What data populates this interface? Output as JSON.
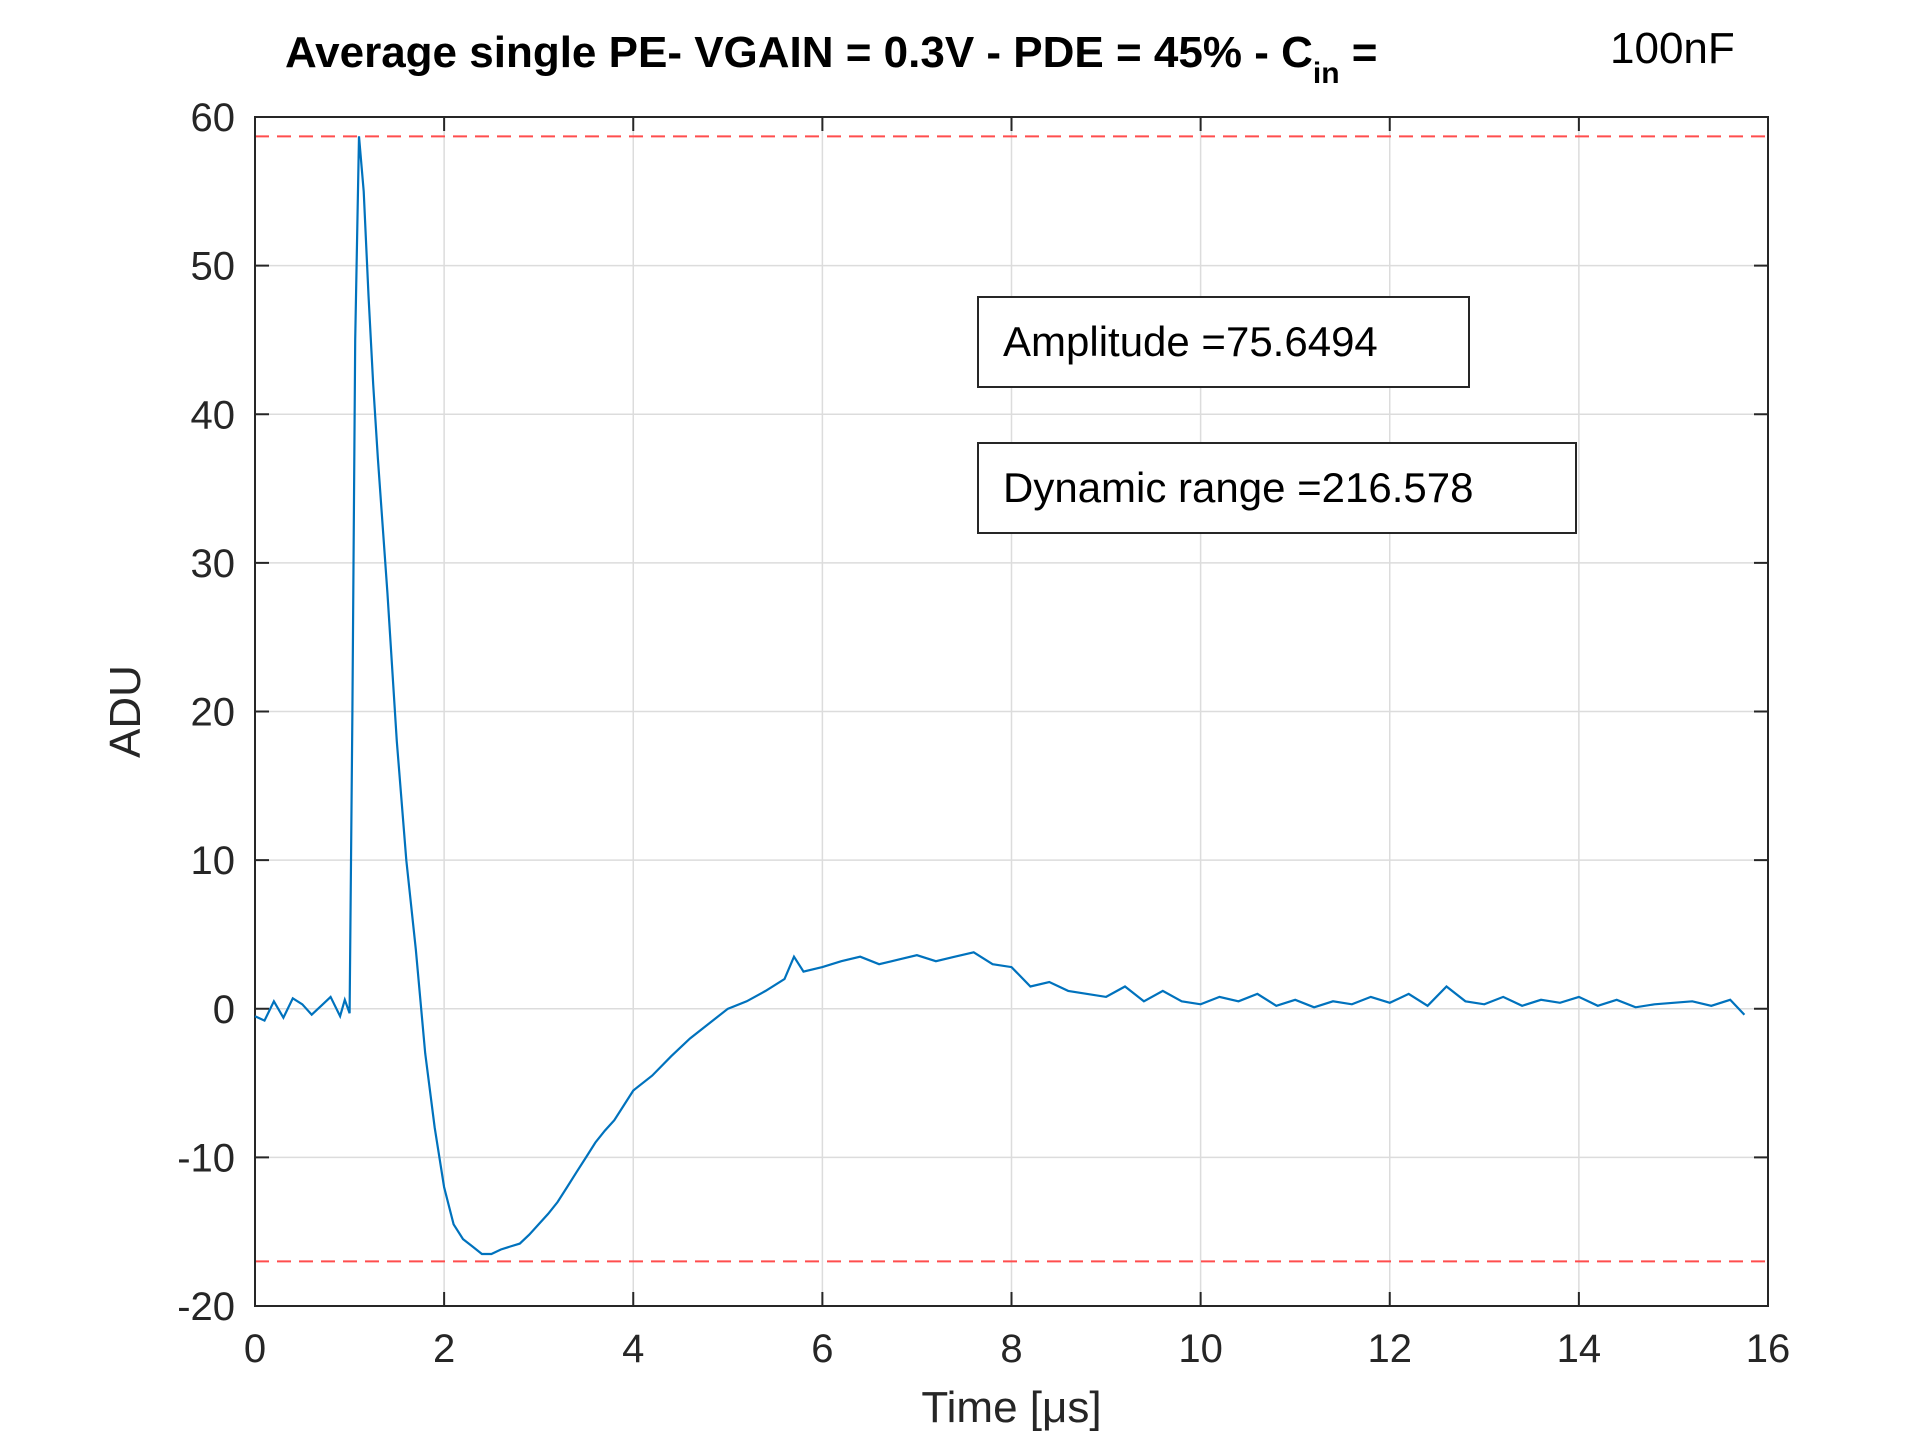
{
  "chart_data": {
    "type": "line",
    "title": {
      "main": "Average single PE- VGAIN = 0.3V - PDE = 45% - C",
      "subscript": "in",
      "suffix": " =",
      "value": "100nF"
    },
    "xlabel": "Time [μs]",
    "ylabel": "ADU",
    "xlim": [
      0,
      16
    ],
    "ylim": [
      -20,
      60
    ],
    "xticks": [
      "0",
      "2",
      "4",
      "6",
      "8",
      "10",
      "12",
      "14",
      "16"
    ],
    "yticks": [
      "-20",
      "-10",
      "0",
      "10",
      "20",
      "30",
      "40",
      "50",
      "60"
    ],
    "grid": true,
    "line_color": "#0072BD",
    "reference_color": "#FF4D4D",
    "reference_lines": [
      58.7,
      -17.0
    ],
    "annotations": [
      {
        "text": "Amplitude =75.6494"
      },
      {
        "text": "Dynamic range =216.578"
      }
    ],
    "series": [
      {
        "x": [
          0,
          0.1,
          0.2,
          0.3,
          0.4,
          0.5,
          0.6,
          0.7,
          0.8,
          0.9,
          0.95,
          1.0,
          1.03,
          1.06,
          1.1,
          1.15,
          1.2,
          1.25,
          1.3,
          1.4,
          1.5,
          1.6,
          1.7,
          1.8,
          1.9,
          2.0,
          2.1,
          2.2,
          2.3,
          2.4,
          2.5,
          2.6,
          2.7,
          2.8,
          2.9,
          3.0,
          3.1,
          3.2,
          3.3,
          3.4,
          3.5,
          3.6,
          3.7,
          3.8,
          3.9,
          4.0,
          4.2,
          4.4,
          4.6,
          4.8,
          5.0,
          5.2,
          5.4,
          5.6,
          5.7,
          5.8,
          6.0,
          6.2,
          6.4,
          6.6,
          6.8,
          7.0,
          7.2,
          7.4,
          7.6,
          7.8,
          8.0,
          8.2,
          8.4,
          8.6,
          8.8,
          9.0,
          9.2,
          9.4,
          9.6,
          9.8,
          10.0,
          10.2,
          10.4,
          10.6,
          10.8,
          11.0,
          11.2,
          11.4,
          11.6,
          11.8,
          12.0,
          12.2,
          12.4,
          12.6,
          12.8,
          13.0,
          13.2,
          13.4,
          13.6,
          13.8,
          14.0,
          14.2,
          14.4,
          14.6,
          14.8,
          15.0,
          15.2,
          15.4,
          15.6,
          15.75
        ],
        "y": [
          -0.5,
          -0.8,
          0.5,
          -0.6,
          0.7,
          0.3,
          -0.4,
          0.2,
          0.8,
          -0.5,
          0.6,
          -0.3,
          20,
          45,
          58.7,
          55,
          48,
          42,
          37,
          28,
          18,
          10,
          4,
          -3,
          -8,
          -12,
          -14.5,
          -15.5,
          -16,
          -16.5,
          -16.5,
          -16.2,
          -16,
          -15.8,
          -15.2,
          -14.5,
          -13.8,
          -13,
          -12,
          -11,
          -10,
          -9,
          -8.2,
          -7.5,
          -6.5,
          -5.5,
          -4.5,
          -3.2,
          -2,
          -1,
          0,
          0.5,
          1.2,
          2,
          3.5,
          2.5,
          2.8,
          3.2,
          3.5,
          3,
          3.3,
          3.6,
          3.2,
          3.5,
          3.8,
          3,
          2.8,
          1.5,
          1.8,
          1.2,
          1,
          0.8,
          1.5,
          0.5,
          1.2,
          0.5,
          0.3,
          0.8,
          0.5,
          1,
          0.2,
          0.6,
          0.1,
          0.5,
          0.3,
          0.8,
          0.4,
          1,
          0.2,
          1.5,
          0.5,
          0.3,
          0.8,
          0.2,
          0.6,
          0.4,
          0.8,
          0.2,
          0.6,
          0.1,
          0.3,
          0.4,
          0.5,
          0.2,
          0.6,
          -0.4
        ]
      }
    ]
  }
}
